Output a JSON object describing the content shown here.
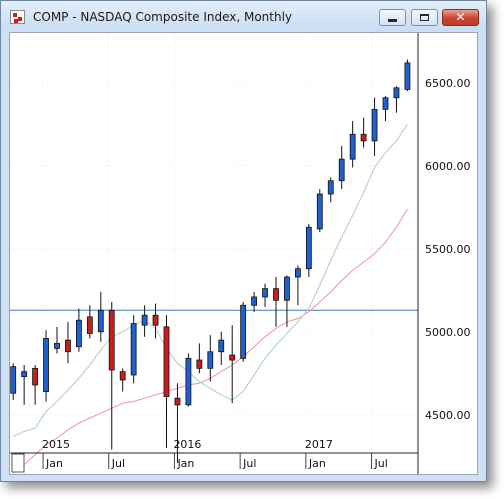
{
  "window": {
    "title": "COMP - NASDAQ Composite Index, Monthly",
    "buttons": {
      "minimize": "minimize-icon",
      "maximize": "maximize-icon",
      "close": "close-icon"
    }
  },
  "chart_data": {
    "type": "candlestick",
    "price_axis": {
      "labels": [
        "6500.00",
        "6000.00",
        "5500.00",
        "5000.00",
        "4500.00"
      ],
      "ticks": [
        6500,
        6000,
        5500,
        5000,
        4500
      ],
      "range": [
        4270,
        6800
      ]
    },
    "time_axis": {
      "year_labels": [
        {
          "label": "2015",
          "index": 3
        },
        {
          "label": "2016",
          "index": 15
        },
        {
          "label": "2017",
          "index": 27
        }
      ],
      "month_labels": [
        {
          "label": "Jan",
          "index": 3
        },
        {
          "label": "Jul",
          "index": 9
        },
        {
          "label": "Jan",
          "index": 15
        },
        {
          "label": "Jul",
          "index": 21
        },
        {
          "label": "Jan",
          "index": 27
        },
        {
          "label": "Jul",
          "index": 33
        }
      ]
    },
    "horizontal_line": 5130,
    "candles": [
      {
        "o": 4630,
        "h": 4810,
        "l": 4590,
        "c": 4790
      },
      {
        "o": 4730,
        "h": 4800,
        "l": 4560,
        "c": 4760
      },
      {
        "o": 4780,
        "h": 4800,
        "l": 4560,
        "c": 4680
      },
      {
        "o": 4640,
        "h": 5010,
        "l": 4580,
        "c": 4960
      },
      {
        "o": 4900,
        "h": 5030,
        "l": 4870,
        "c": 4930
      },
      {
        "o": 4950,
        "h": 5060,
        "l": 4810,
        "c": 4880
      },
      {
        "o": 4910,
        "h": 5140,
        "l": 4880,
        "c": 5070
      },
      {
        "o": 5090,
        "h": 5160,
        "l": 4960,
        "c": 4990
      },
      {
        "o": 5000,
        "h": 5240,
        "l": 4940,
        "c": 5130
      },
      {
        "o": 5130,
        "h": 5180,
        "l": 4290,
        "c": 4770
      },
      {
        "o": 4760,
        "h": 4780,
        "l": 4640,
        "c": 4710
      },
      {
        "o": 4740,
        "h": 5100,
        "l": 4690,
        "c": 5050
      },
      {
        "o": 5040,
        "h": 5160,
        "l": 4970,
        "c": 5100
      },
      {
        "o": 5100,
        "h": 5170,
        "l": 4960,
        "c": 5040
      },
      {
        "o": 5030,
        "h": 5100,
        "l": 4300,
        "c": 4610
      },
      {
        "o": 4600,
        "h": 4690,
        "l": 4210,
        "c": 4560
      },
      {
        "o": 4560,
        "h": 4870,
        "l": 4550,
        "c": 4840
      },
      {
        "o": 4830,
        "h": 4930,
        "l": 4750,
        "c": 4780
      },
      {
        "o": 4780,
        "h": 4980,
        "l": 4700,
        "c": 4880
      },
      {
        "o": 4880,
        "h": 5000,
        "l": 4800,
        "c": 4950
      },
      {
        "o": 4860,
        "h": 5040,
        "l": 4570,
        "c": 4830
      },
      {
        "o": 4840,
        "h": 5180,
        "l": 4820,
        "c": 5160
      },
      {
        "o": 5160,
        "h": 5240,
        "l": 5120,
        "c": 5210
      },
      {
        "o": 5210,
        "h": 5290,
        "l": 5150,
        "c": 5260
      },
      {
        "o": 5260,
        "h": 5330,
        "l": 5030,
        "c": 5190
      },
      {
        "o": 5190,
        "h": 5340,
        "l": 5030,
        "c": 5330
      },
      {
        "o": 5330,
        "h": 5400,
        "l": 5160,
        "c": 5380
      },
      {
        "o": 5380,
        "h": 5650,
        "l": 5330,
        "c": 5630
      },
      {
        "o": 5620,
        "h": 5860,
        "l": 5600,
        "c": 5830
      },
      {
        "o": 5830,
        "h": 5930,
        "l": 5780,
        "c": 5910
      },
      {
        "o": 5910,
        "h": 6120,
        "l": 5860,
        "c": 6040
      },
      {
        "o": 6040,
        "h": 6270,
        "l": 5990,
        "c": 6190
      },
      {
        "o": 6190,
        "h": 6290,
        "l": 6110,
        "c": 6150
      },
      {
        "o": 6150,
        "h": 6410,
        "l": 6060,
        "c": 6340
      },
      {
        "o": 6340,
        "h": 6420,
        "l": 6270,
        "c": 6410
      },
      {
        "o": 6410,
        "h": 6480,
        "l": 6320,
        "c": 6470
      },
      {
        "o": 6460,
        "h": 6640,
        "l": 6450,
        "c": 6620
      }
    ],
    "ma_short": [
      4370,
      4400,
      4420,
      4520,
      4580,
      4650,
      4720,
      4800,
      4890,
      4970,
      5000,
      5040,
      5070,
      5020,
      4900,
      4810,
      4760,
      4700,
      4660,
      4620,
      4590,
      4640,
      4740,
      4840,
      4920,
      4990,
      5060,
      5140,
      5280,
      5430,
      5570,
      5700,
      5840,
      5990,
      6080,
      6150,
      6250
    ],
    "ma_long": [
      4150,
      4200,
      4260,
      4320,
      4360,
      4410,
      4450,
      4480,
      4510,
      4540,
      4570,
      4580,
      4600,
      4620,
      4640,
      4660,
      4680,
      4690,
      4720,
      4760,
      4800,
      4850,
      4910,
      4970,
      5020,
      5060,
      5080,
      5120,
      5180,
      5240,
      5310,
      5370,
      5420,
      5470,
      5540,
      5630,
      5740
    ]
  }
}
